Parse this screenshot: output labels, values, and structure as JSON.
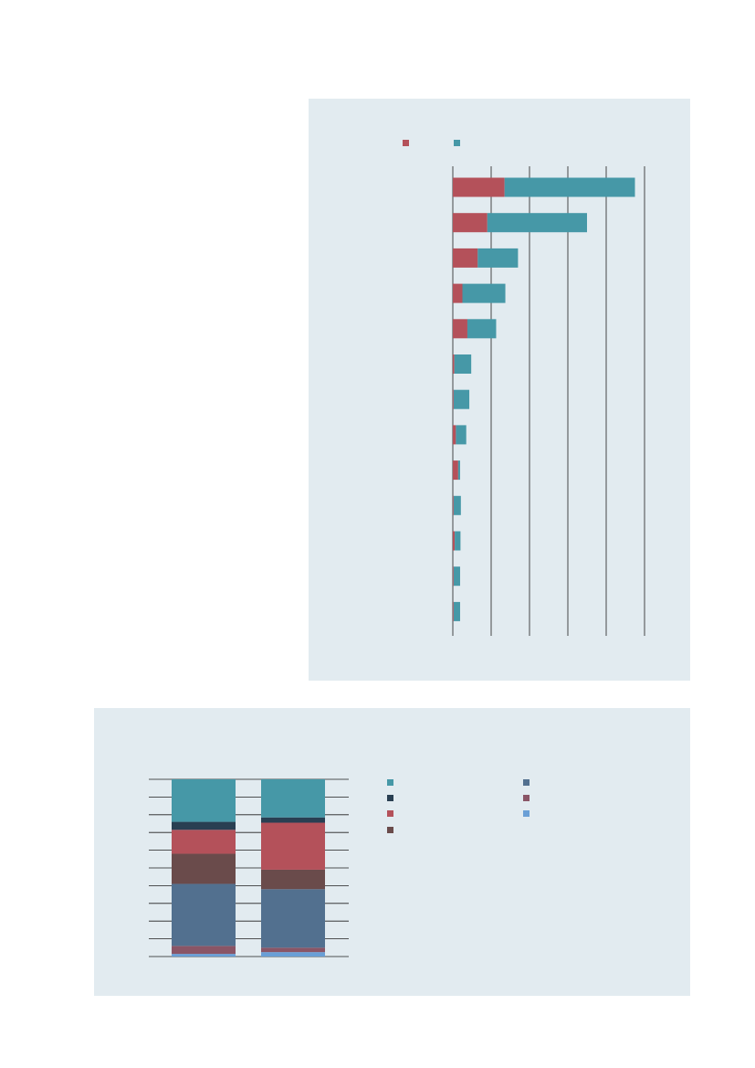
{
  "colors": {
    "panel_bg": "#e2ebf0",
    "red": "#b4515a",
    "teal": "#4698a7",
    "navy": "#293f52",
    "brown": "#6a4b4b",
    "slate": "#52708f",
    "mauve": "#8a5566",
    "light_blue": "#6a9fd6",
    "axis": "#1e1e1e"
  },
  "chart_data": [
    {
      "type": "bar",
      "orientation": "horizontal",
      "stacked": true,
      "title": "",
      "xlabel": "",
      "ylabel": "",
      "categories": [
        "",
        "",
        "",
        "",
        "",
        "",
        "",
        "",
        "",
        "",
        "",
        "",
        ""
      ],
      "xlim": [
        0,
        5.5
      ],
      "grid": true,
      "legend_position": "top",
      "series": [
        {
          "color": "red",
          "values": [
            1.35,
            0.9,
            0.65,
            0.25,
            0.38,
            0.04,
            0.02,
            0.08,
            0.14,
            0.02,
            0.05,
            0.02,
            0.02
          ]
        },
        {
          "color": "teal",
          "values": [
            3.4,
            2.6,
            1.05,
            1.12,
            0.75,
            0.44,
            0.41,
            0.27,
            0.05,
            0.19,
            0.15,
            0.17,
            0.17
          ]
        }
      ]
    },
    {
      "type": "bar",
      "orientation": "vertical",
      "stacked": true,
      "title": "",
      "categories": [
        "",
        ""
      ],
      "ylim": [
        0,
        100
      ],
      "grid": true,
      "legend_position": "right",
      "series": [
        {
          "color": "light_blue",
          "values": [
            1.5,
            2.5
          ]
        },
        {
          "color": "mauve",
          "values": [
            4.5,
            2.5
          ]
        },
        {
          "color": "slate",
          "values": [
            35,
            33
          ]
        },
        {
          "color": "brown",
          "values": [
            17,
            11
          ]
        },
        {
          "color": "red",
          "values": [
            13.5,
            26.5
          ]
        },
        {
          "color": "navy",
          "values": [
            4.5,
            3
          ]
        },
        {
          "color": "teal",
          "values": [
            24,
            21.5
          ]
        }
      ],
      "legend_order": [
        "teal",
        "navy",
        "red",
        "brown",
        "slate",
        "mauve",
        "light_blue"
      ]
    }
  ]
}
